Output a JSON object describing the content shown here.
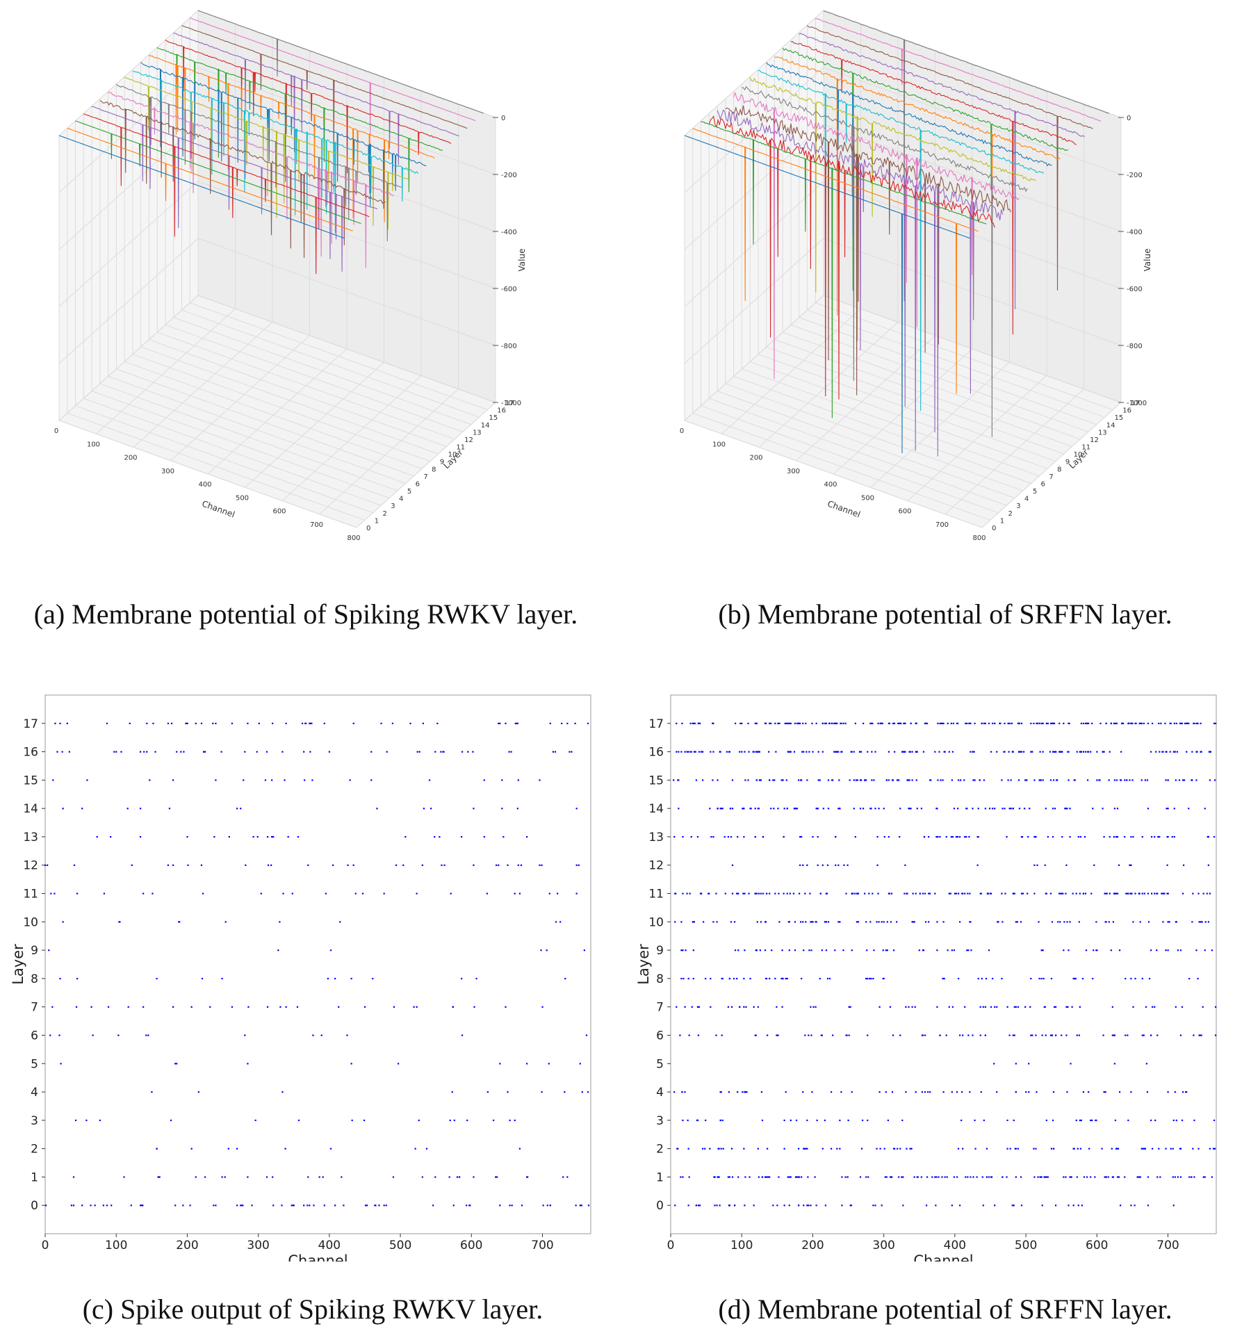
{
  "figure": {
    "captions": {
      "a": "(a) Membrane potential of Spiking RWKV layer.",
      "b": "(b) Membrane potential of SRFFN layer.",
      "c": "(c) Spike output of Spiking RWKV layer.",
      "d": "(d) Membrane potential of SRFFN layer."
    }
  },
  "chart_data": [
    {
      "id": "a",
      "type": "line",
      "projection": "3d",
      "title": "(a) Membrane potential of Spiking RWKV layer.",
      "xlabel": "Channel",
      "ylabel": "Layer",
      "zlabel": "Value",
      "x_ticks": [
        0,
        100,
        200,
        300,
        400,
        500,
        600,
        700,
        800
      ],
      "y_ticks": [
        0,
        1,
        2,
        3,
        4,
        5,
        6,
        7,
        8,
        9,
        10,
        11,
        12,
        13,
        14,
        15,
        16,
        17
      ],
      "z_ticks": [
        0,
        -200,
        -400,
        -600,
        -800,
        -1000
      ],
      "x_range": [
        0,
        800
      ],
      "z_range": [
        -1000,
        0
      ],
      "series_colors": [
        "#1f77b4",
        "#ff7f0e",
        "#2ca02c",
        "#d62728",
        "#9467bd",
        "#8c564b",
        "#e377c2",
        "#7f7f7f",
        "#bcbd22",
        "#17becf",
        "#1f77b4",
        "#ff7f0e",
        "#2ca02c",
        "#d62728",
        "#9467bd",
        "#8c564b",
        "#e377c2",
        "#7f7f7f"
      ],
      "noise_amplitude": [
        0,
        0,
        0,
        2,
        2,
        12,
        8,
        6,
        4,
        8,
        8,
        4,
        4,
        4,
        4,
        2,
        1,
        1
      ],
      "spike_count": [
        0,
        1,
        2,
        6,
        8,
        10,
        12,
        12,
        14,
        16,
        16,
        14,
        10,
        8,
        6,
        3,
        1,
        1
      ],
      "spike_depth_range": [
        -60,
        -320
      ]
    },
    {
      "id": "b",
      "type": "line",
      "projection": "3d",
      "title": "(b) Membrane potential of SRFFN layer.",
      "xlabel": "Channel",
      "ylabel": "Layer",
      "zlabel": "Value",
      "x_ticks": [
        0,
        100,
        200,
        300,
        400,
        500,
        600,
        700,
        800
      ],
      "y_ticks": [
        0,
        1,
        2,
        3,
        4,
        5,
        6,
        7,
        8,
        9,
        10,
        11,
        12,
        13,
        14,
        15,
        16,
        17
      ],
      "z_ticks": [
        0,
        -200,
        -400,
        -600,
        -800,
        -1000
      ],
      "x_range": [
        0,
        800
      ],
      "z_range": [
        -1000,
        0
      ],
      "series_colors": [
        "#1f77b4",
        "#ff7f0e",
        "#2ca02c",
        "#d62728",
        "#9467bd",
        "#8c564b",
        "#e377c2",
        "#7f7f7f",
        "#bcbd22",
        "#17becf",
        "#1f77b4",
        "#ff7f0e",
        "#2ca02c",
        "#d62728",
        "#9467bd",
        "#8c564b",
        "#e377c2",
        "#7f7f7f"
      ],
      "noise_amplitude": [
        0,
        2,
        4,
        40,
        45,
        45,
        30,
        20,
        15,
        12,
        12,
        10,
        10,
        8,
        8,
        5,
        3,
        2
      ],
      "spike_count": [
        1,
        2,
        3,
        6,
        8,
        8,
        4,
        3,
        3,
        3,
        2,
        2,
        2,
        2,
        1,
        1,
        1,
        1
      ],
      "spike_depth_range": [
        -100,
        -1000
      ]
    },
    {
      "id": "c",
      "type": "scatter",
      "title": "(c) Spike output of Spiking RWKV layer.",
      "xlabel": "Channel",
      "ylabel": "Layer",
      "x_ticks": [
        0,
        100,
        200,
        300,
        400,
        500,
        600,
        700
      ],
      "y_ticks": [
        0,
        1,
        2,
        3,
        4,
        5,
        6,
        7,
        8,
        9,
        10,
        11,
        12,
        13,
        14,
        15,
        16,
        17
      ],
      "xlim": [
        0,
        768
      ],
      "ylim": [
        -1,
        18
      ],
      "marker_color": "#0000ff",
      "spikes_per_layer": [
        60,
        30,
        10,
        15,
        10,
        10,
        12,
        25,
        12,
        6,
        10,
        22,
        30,
        20,
        14,
        18,
        40,
        45
      ]
    },
    {
      "id": "d",
      "type": "scatter",
      "title": "(d) Membrane potential of SRFFN layer.",
      "xlabel": "Channel",
      "ylabel": "Layer",
      "x_ticks": [
        0,
        100,
        200,
        300,
        400,
        500,
        600,
        700
      ],
      "y_ticks": [
        0,
        1,
        2,
        3,
        4,
        5,
        6,
        7,
        8,
        9,
        10,
        11,
        12,
        13,
        14,
        15,
        16,
        17
      ],
      "xlim": [
        0,
        768
      ],
      "ylim": [
        -1,
        18
      ],
      "marker_color": "#0000ff",
      "spikes_per_layer": [
        55,
        130,
        75,
        45,
        55,
        6,
        70,
        60,
        60,
        60,
        90,
        150,
        25,
        80,
        90,
        120,
        150,
        200
      ]
    }
  ]
}
